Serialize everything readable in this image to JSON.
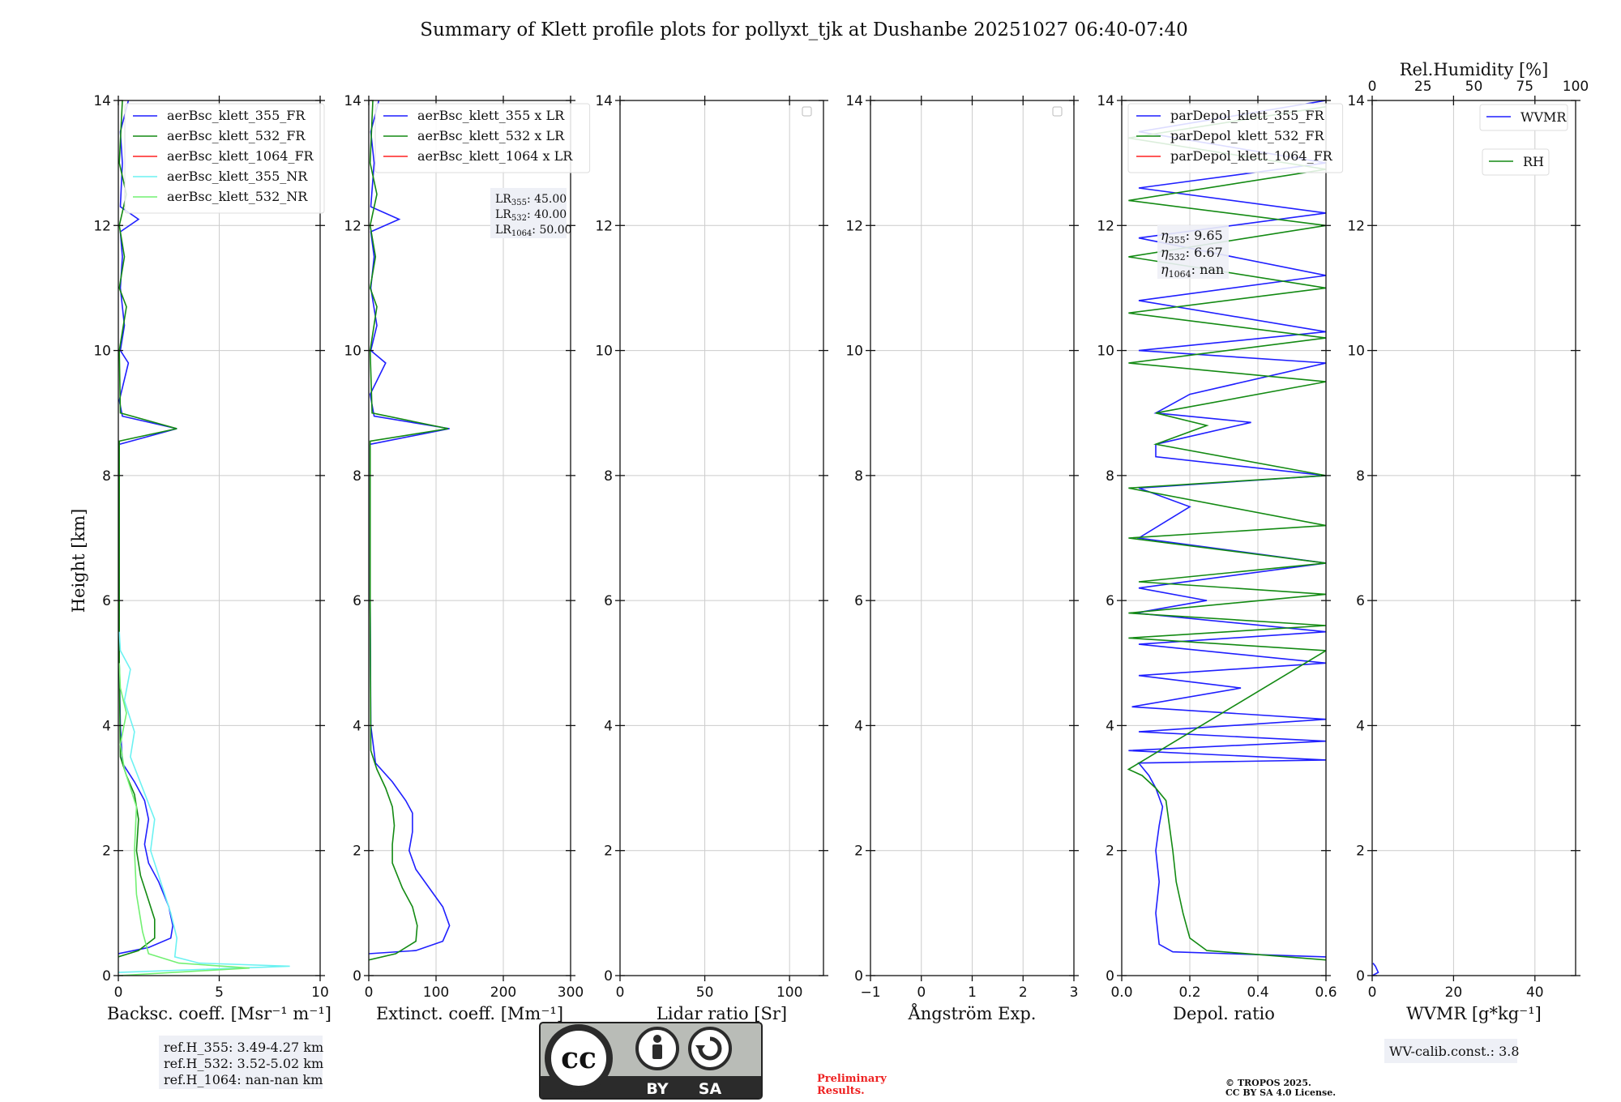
{
  "title": "Summary of Klett profile plots for pollyxt_tjk at Dushanbe 20251027 06:40-07:40",
  "ylabel": "Height [km]",
  "ylim": [
    0,
    14
  ],
  "yticks": [
    0,
    2,
    4,
    6,
    8,
    10,
    12,
    14
  ],
  "colors": {
    "355": "#1f1fff",
    "532": "#138a13",
    "1064": "#ff2020",
    "355_nr": "#6cf2f2",
    "532_nr": "#72f072",
    "grid": "#cccccc"
  },
  "chart_data": [
    {
      "type": "line",
      "id": "backscatter",
      "xlabel": "Backsc. coeff. [Msr⁻¹ m⁻¹]",
      "xlim": [
        0,
        10
      ],
      "xticks": [
        0,
        5,
        10
      ],
      "legend": [
        "aerBsc_klett_355_FR",
        "aerBsc_klett_532_FR",
        "aerBsc_klett_1064_FR",
        "aerBsc_klett_355_NR",
        "aerBsc_klett_532_NR"
      ],
      "series": [
        {
          "name": "aerBsc_klett_355_FR",
          "color_key": "355",
          "points": [
            [
              0,
              0.35
            ],
            [
              1.5,
              0.45
            ],
            [
              2.6,
              0.6
            ],
            [
              2.7,
              0.8
            ],
            [
              2.5,
              1.1
            ],
            [
              2.0,
              1.5
            ],
            [
              1.5,
              1.8
            ],
            [
              1.3,
              2.1
            ],
            [
              1.5,
              2.5
            ],
            [
              1.3,
              2.8
            ],
            [
              0.8,
              3.1
            ],
            [
              0.2,
              3.4
            ],
            [
              0.1,
              4.0
            ],
            [
              0.05,
              5.0
            ],
            [
              0.05,
              7.0
            ],
            [
              0.05,
              8.5
            ],
            [
              2.9,
              8.75
            ],
            [
              0.2,
              8.95
            ],
            [
              0.05,
              9.2
            ],
            [
              0.5,
              9.8
            ],
            [
              0.1,
              10.0
            ],
            [
              0.3,
              10.4
            ],
            [
              0.1,
              11.0
            ],
            [
              0.2,
              11.5
            ],
            [
              0.1,
              11.9
            ],
            [
              1.0,
              12.1
            ],
            [
              0.1,
              12.3
            ],
            [
              0.2,
              13.0
            ],
            [
              0.1,
              13.5
            ],
            [
              0.5,
              14.0
            ]
          ]
        },
        {
          "name": "aerBsc_klett_532_FR",
          "color_key": "532",
          "points": [
            [
              0,
              0.3
            ],
            [
              1.0,
              0.4
            ],
            [
              1.8,
              0.6
            ],
            [
              1.8,
              0.9
            ],
            [
              1.4,
              1.3
            ],
            [
              1.1,
              1.6
            ],
            [
              0.9,
              2.0
            ],
            [
              1.0,
              2.5
            ],
            [
              0.8,
              2.9
            ],
            [
              0.4,
              3.2
            ],
            [
              0.1,
              3.5
            ],
            [
              0.05,
              5.0
            ],
            [
              0.05,
              7.0
            ],
            [
              0.05,
              8.55
            ],
            [
              2.9,
              8.75
            ],
            [
              0.1,
              9.0
            ],
            [
              0.05,
              10.0
            ],
            [
              0.4,
              10.7
            ],
            [
              0.05,
              11.0
            ],
            [
              0.3,
              11.5
            ],
            [
              0.05,
              12.0
            ],
            [
              0.4,
              12.5
            ],
            [
              0.05,
              13.0
            ],
            [
              0.2,
              14.0
            ]
          ]
        },
        {
          "name": "aerBsc_klett_355_NR",
          "color_key": "355_nr",
          "points": [
            [
              0,
              0.05
            ],
            [
              8.5,
              0.15
            ],
            [
              4.0,
              0.2
            ],
            [
              2.8,
              0.3
            ],
            [
              2.9,
              0.6
            ],
            [
              2.6,
              1.0
            ],
            [
              2.0,
              1.6
            ],
            [
              1.6,
              2.0
            ],
            [
              1.8,
              2.5
            ],
            [
              1.2,
              3.0
            ],
            [
              0.6,
              3.5
            ],
            [
              0.8,
              3.9
            ],
            [
              0.3,
              4.4
            ],
            [
              0.6,
              4.9
            ],
            [
              0.1,
              5.2
            ],
            [
              0.05,
              5.5
            ]
          ]
        },
        {
          "name": "aerBsc_klett_532_NR",
          "color_key": "532_nr",
          "points": [
            [
              0,
              0.0
            ],
            [
              6.5,
              0.12
            ],
            [
              3.0,
              0.2
            ],
            [
              1.5,
              0.35
            ],
            [
              1.2,
              0.7
            ],
            [
              0.9,
              1.3
            ],
            [
              0.8,
              2.0
            ],
            [
              0.9,
              2.7
            ],
            [
              0.3,
              3.3
            ],
            [
              0.1,
              3.7
            ],
            [
              0.4,
              4.2
            ],
            [
              0.1,
              4.6
            ],
            [
              0.05,
              5.0
            ]
          ]
        }
      ]
    },
    {
      "type": "line",
      "id": "extinction",
      "xlabel": "Extinct. coeff. [Mm⁻¹]",
      "xlim": [
        0,
        300
      ],
      "xticks": [
        0,
        100,
        200,
        300
      ],
      "legend": [
        "aerBsc_klett_355 x LR",
        "aerBsc_klett_532 x LR",
        "aerBsc_klett_1064 x LR"
      ],
      "lr_box": [
        {
          "label": "LR",
          "sub": "355",
          "value": ": 45.00"
        },
        {
          "label": "LR",
          "sub": "532",
          "value": ": 40.00"
        },
        {
          "label": "LR",
          "sub": "1064",
          "value": ": 50.00"
        }
      ],
      "series": [
        {
          "name": "aerBsc_klett_355 x LR",
          "color_key": "355",
          "points": [
            [
              0,
              0.35
            ],
            [
              70,
              0.4
            ],
            [
              110,
              0.55
            ],
            [
              120,
              0.8
            ],
            [
              110,
              1.1
            ],
            [
              90,
              1.4
            ],
            [
              70,
              1.7
            ],
            [
              60,
              2.0
            ],
            [
              65,
              2.3
            ],
            [
              65,
              2.6
            ],
            [
              55,
              2.8
            ],
            [
              35,
              3.1
            ],
            [
              10,
              3.4
            ],
            [
              3,
              4.0
            ],
            [
              2,
              6.0
            ],
            [
              2,
              8.5
            ],
            [
              120,
              8.75
            ],
            [
              8,
              8.95
            ],
            [
              2,
              9.3
            ],
            [
              25,
              9.8
            ],
            [
              3,
              10.0
            ],
            [
              12,
              10.4
            ],
            [
              3,
              11.0
            ],
            [
              8,
              11.5
            ],
            [
              3,
              11.9
            ],
            [
              45,
              12.1
            ],
            [
              3,
              12.3
            ],
            [
              8,
              13.0
            ],
            [
              3,
              13.5
            ],
            [
              15,
              14.0
            ]
          ]
        },
        {
          "name": "aerBsc_klett_532 x LR",
          "color_key": "532",
          "points": [
            [
              0,
              0.25
            ],
            [
              40,
              0.35
            ],
            [
              70,
              0.55
            ],
            [
              72,
              0.8
            ],
            [
              65,
              1.1
            ],
            [
              50,
              1.4
            ],
            [
              35,
              1.8
            ],
            [
              35,
              2.1
            ],
            [
              38,
              2.4
            ],
            [
              35,
              2.7
            ],
            [
              25,
              3.0
            ],
            [
              12,
              3.3
            ],
            [
              3,
              3.6
            ],
            [
              2,
              6.0
            ],
            [
              2,
              8.55
            ],
            [
              118,
              8.75
            ],
            [
              5,
              9.0
            ],
            [
              2,
              10.0
            ],
            [
              12,
              10.7
            ],
            [
              2,
              11.0
            ],
            [
              10,
              11.5
            ],
            [
              2,
              12.0
            ],
            [
              12,
              12.5
            ],
            [
              2,
              13.0
            ],
            [
              6,
              14.0
            ]
          ]
        }
      ]
    },
    {
      "type": "line",
      "id": "lidar-ratio",
      "xlabel": "Lidar ratio [Sr]",
      "xlim": [
        0,
        120
      ],
      "xticks": [
        0,
        50,
        100
      ],
      "series": []
    },
    {
      "type": "line",
      "id": "angstrom",
      "xlabel": "Ångström Exp.",
      "xlim": [
        -1,
        3
      ],
      "xticks": [
        -1,
        0,
        1,
        2,
        3
      ],
      "series": []
    },
    {
      "type": "line",
      "id": "depol",
      "xlabel": "Depol. ratio",
      "xlim": [
        0,
        0.6
      ],
      "xticks": [
        0.0,
        0.2,
        0.4,
        0.6
      ],
      "xtick_labels": [
        "0.0",
        "0.2",
        "0.4",
        "0.6"
      ],
      "legend": [
        "parDepol_klett_355_FR",
        "parDepol_klett_532_FR",
        "parDepol_klett_1064_FR"
      ],
      "eta_box": [
        {
          "sub": "355",
          "value": ": 9.65"
        },
        {
          "sub": "532",
          "value": ": 6.67"
        },
        {
          "sub": "1064",
          "value": ": nan"
        }
      ],
      "series": [
        {
          "name": "parDepol_klett_355_FR",
          "color_key": "355",
          "points": [
            [
              0.6,
              0.3
            ],
            [
              0.15,
              0.38
            ],
            [
              0.11,
              0.5
            ],
            [
              0.1,
              1.0
            ],
            [
              0.11,
              1.5
            ],
            [
              0.1,
              2.0
            ],
            [
              0.11,
              2.4
            ],
            [
              0.12,
              2.7
            ],
            [
              0.1,
              3.0
            ],
            [
              0.08,
              3.2
            ],
            [
              0.05,
              3.4
            ],
            [
              0.6,
              3.45
            ],
            [
              0.02,
              3.6
            ],
            [
              0.6,
              3.75
            ],
            [
              0.05,
              3.9
            ],
            [
              0.6,
              4.1
            ],
            [
              0.03,
              4.3
            ],
            [
              0.35,
              4.6
            ],
            [
              0.05,
              4.8
            ],
            [
              0.6,
              5.0
            ],
            [
              0.05,
              5.3
            ],
            [
              0.6,
              5.5
            ],
            [
              0.04,
              5.8
            ],
            [
              0.25,
              6.0
            ],
            [
              0.05,
              6.2
            ],
            [
              0.6,
              6.6
            ],
            [
              0.05,
              7.0
            ],
            [
              0.2,
              7.5
            ],
            [
              0.05,
              7.8
            ],
            [
              0.6,
              8.0
            ],
            [
              0.1,
              8.3
            ],
            [
              0.1,
              8.5
            ],
            [
              0.38,
              8.85
            ],
            [
              0.1,
              9.0
            ],
            [
              0.2,
              9.3
            ],
            [
              0.6,
              9.8
            ],
            [
              0.05,
              10.0
            ],
            [
              0.6,
              10.3
            ],
            [
              0.05,
              10.8
            ],
            [
              0.6,
              11.2
            ],
            [
              0.05,
              11.8
            ],
            [
              0.6,
              12.2
            ],
            [
              0.05,
              12.6
            ],
            [
              0.6,
              13.0
            ],
            [
              0.05,
              13.5
            ],
            [
              0.6,
              14.0
            ]
          ]
        },
        {
          "name": "parDepol_klett_532_FR",
          "color_key": "532",
          "points": [
            [
              0.6,
              0.25
            ],
            [
              0.25,
              0.4
            ],
            [
              0.2,
              0.6
            ],
            [
              0.18,
              1.0
            ],
            [
              0.16,
              1.5
            ],
            [
              0.15,
              2.0
            ],
            [
              0.14,
              2.4
            ],
            [
              0.13,
              2.8
            ],
            [
              0.1,
              3.0
            ],
            [
              0.06,
              3.2
            ],
            [
              0.02,
              3.3
            ],
            [
              0.6,
              5.2
            ],
            [
              0.02,
              5.4
            ],
            [
              0.6,
              5.6
            ],
            [
              0.02,
              5.8
            ],
            [
              0.6,
              6.1
            ],
            [
              0.05,
              6.3
            ],
            [
              0.6,
              6.6
            ],
            [
              0.02,
              7.0
            ],
            [
              0.6,
              7.2
            ],
            [
              0.02,
              7.8
            ],
            [
              0.6,
              8.0
            ],
            [
              0.1,
              8.5
            ],
            [
              0.25,
              8.8
            ],
            [
              0.1,
              9.0
            ],
            [
              0.6,
              9.5
            ],
            [
              0.02,
              9.8
            ],
            [
              0.6,
              10.2
            ],
            [
              0.02,
              10.6
            ],
            [
              0.6,
              11.0
            ],
            [
              0.02,
              11.5
            ],
            [
              0.6,
              12.0
            ],
            [
              0.02,
              12.4
            ],
            [
              0.6,
              12.9
            ],
            [
              0.02,
              13.4
            ],
            [
              0.6,
              13.9
            ]
          ]
        }
      ]
    },
    {
      "type": "line",
      "id": "wvmr",
      "xlabel": "WVMR [g*kg⁻¹]",
      "xlim": [
        0,
        50
      ],
      "xticks": [
        0,
        20,
        40
      ],
      "top_axis_label": "Rel.Humidity [%]",
      "top_ticks": [
        0,
        25,
        50,
        75,
        100
      ],
      "legend": [
        "WVMR",
        "RH"
      ],
      "series": [
        {
          "name": "WVMR",
          "color_key": "355",
          "points": [
            [
              0,
              0.0
            ],
            [
              1.5,
              0.05
            ],
            [
              0.8,
              0.15
            ],
            [
              0.2,
              0.2
            ]
          ]
        }
      ]
    }
  ],
  "info": {
    "ref_h": [
      "ref.H_355: 3.49-4.27 km",
      "ref.H_532: 3.52-5.02 km",
      "ref.H_1064: nan-nan km"
    ],
    "eta_symbol": "η",
    "preliminary_line1": "Preliminary",
    "preliminary_line2": "Results.",
    "copyright_line1": "© TROPOS 2025.",
    "copyright_line2": "CC BY SA 4.0 License.",
    "wv_calib": "WV-calib.const.: 3.8",
    "cc_logo": {
      "cc": "cc",
      "by": "BY",
      "sa": "SA"
    }
  }
}
